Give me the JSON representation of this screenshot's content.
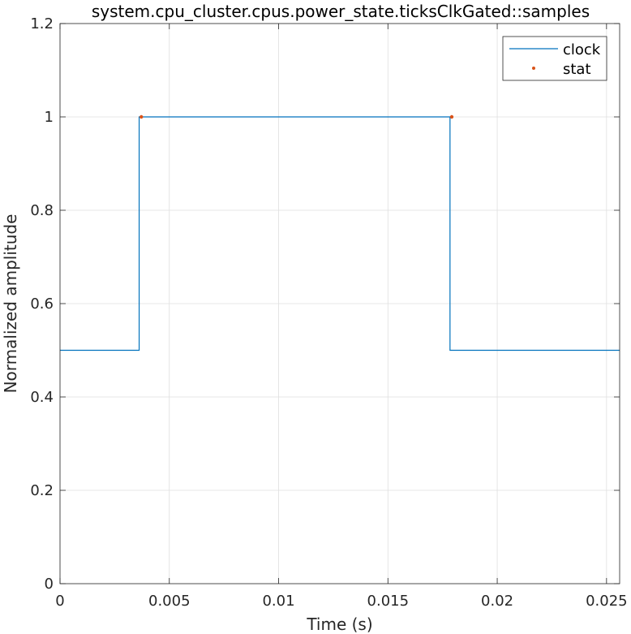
{
  "chart_data": {
    "type": "line",
    "title": "system.cpu_cluster.cpus.power_state.ticksClkGated::samples",
    "xlabel": "Time (s)",
    "ylabel": "Normalized amplitude",
    "xlim": [
      0,
      0.0256
    ],
    "ylim": [
      0,
      1.2
    ],
    "x_ticks": [
      0,
      0.005,
      0.01,
      0.015,
      0.02,
      0.025
    ],
    "x_tick_labels": [
      "0",
      "0.005",
      "0.01",
      "0.015",
      "0.02",
      "0.025"
    ],
    "y_ticks": [
      0,
      0.2,
      0.4,
      0.6,
      0.8,
      1.0,
      1.2
    ],
    "y_tick_labels": [
      "0",
      "0.2",
      "0.4",
      "0.6",
      "0.8",
      "1",
      "1.2"
    ],
    "grid": true,
    "legend_position": "top-right",
    "series": [
      {
        "name": "clock",
        "kind": "line",
        "color": "#0072BD",
        "x": [
          0,
          0.00362,
          0.00362,
          0.01784,
          0.01784,
          0.0256
        ],
        "y": [
          0.5,
          0.5,
          1.0,
          1.0,
          0.5,
          0.5
        ]
      },
      {
        "name": "stat",
        "kind": "markers",
        "color": "#D95319",
        "x": [
          0.00372,
          0.01792
        ],
        "y": [
          1.0,
          1.0
        ]
      }
    ]
  }
}
